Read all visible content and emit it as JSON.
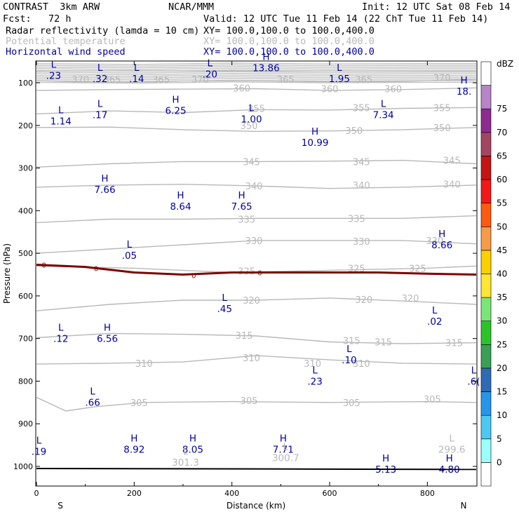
{
  "header": {
    "model": "CONTRAST  3km ARW",
    "center": "NCAR/MMM",
    "init": "Init: 12 UTC Sat 08 Feb 14",
    "fcst": "Fcst:   72 h",
    "valid": "Valid: 12 UTC Tue 11 Feb 14 (22 ChT Tue 11 Feb 14)",
    "fields": [
      {
        "name": "Radar reflectivity (lamda = 10 cm)",
        "xy": "XY= 100.0,100.0 to 100.0,400.0",
        "color": "#000000"
      },
      {
        "name": "Potential temperature",
        "xy": "XY= 100.0,100.0 to 100.0,400.0",
        "color": "#b8b8b8"
      },
      {
        "name": "Horizontal wind speed",
        "xy": "XY= 100.0,100.0 to 100.0,400.0",
        "color": "#0000a0"
      }
    ]
  },
  "chart_data": {
    "type": "contour_cross_section",
    "xlabel": "Distance (km)",
    "ylabel": "Pressure (hPa)",
    "xlim": [
      0,
      900
    ],
    "ylim": [
      1050,
      50
    ],
    "x_ticks": [
      0,
      200,
      400,
      600,
      800
    ],
    "y_ticks": [
      100,
      200,
      300,
      400,
      500,
      600,
      700,
      800,
      900,
      1000
    ],
    "end_labels": {
      "left": "S",
      "right": "N"
    },
    "colorbar": {
      "unit": "dBZ",
      "levels": [
        0,
        5,
        10,
        15,
        20,
        25,
        30,
        35,
        40,
        45,
        50,
        55,
        60,
        65,
        70,
        75
      ],
      "colors": [
        "#ffffff",
        "#9cffff",
        "#4cc8f4",
        "#2896e8",
        "#2e6bb4",
        "#3aa055",
        "#2ac42a",
        "#7ae67a",
        "#ffe633",
        "#ffd000",
        "#f59b4a",
        "#ff5a10",
        "#f51818",
        "#c41414",
        "#a34560",
        "#8e2a92",
        "#b884c8",
        "#ffffff"
      ]
    },
    "theta_contours": [
      {
        "level": 370,
        "points": [
          [
            0,
            72
          ],
          [
            900,
            72
          ]
        ]
      },
      {
        "level": 365,
        "points": [
          [
            0,
            95
          ],
          [
            150,
            100
          ],
          [
            300,
            96
          ],
          [
            450,
            95
          ],
          [
            600,
            98
          ],
          [
            750,
            97
          ],
          [
            900,
            92
          ]
        ]
      },
      {
        "level": 360,
        "points": [
          [
            0,
            118
          ],
          [
            150,
            116
          ],
          [
            300,
            115
          ],
          [
            450,
            114
          ],
          [
            600,
            118
          ],
          [
            750,
            116
          ],
          [
            900,
            112
          ]
        ]
      },
      {
        "level": 355,
        "points": [
          [
            0,
            173
          ],
          [
            150,
            166
          ],
          [
            300,
            170
          ],
          [
            450,
            163
          ],
          [
            600,
            164
          ],
          [
            750,
            160
          ],
          [
            900,
            158
          ]
        ]
      },
      {
        "level": 350,
        "points": [
          [
            0,
            205
          ],
          [
            150,
            204
          ],
          [
            300,
            210
          ],
          [
            450,
            214
          ],
          [
            600,
            213
          ],
          [
            750,
            210
          ],
          [
            900,
            205
          ]
        ]
      },
      {
        "level": 345,
        "points": [
          [
            0,
            298
          ],
          [
            150,
            290
          ],
          [
            300,
            285
          ],
          [
            450,
            285
          ],
          [
            600,
            284
          ],
          [
            750,
            282
          ],
          [
            900,
            290
          ]
        ]
      },
      {
        "level": 340,
        "points": [
          [
            0,
            345
          ],
          [
            150,
            340
          ],
          [
            300,
            338
          ],
          [
            450,
            342
          ],
          [
            600,
            348
          ],
          [
            750,
            345
          ],
          [
            900,
            340
          ]
        ]
      },
      {
        "level": 335,
        "points": [
          [
            0,
            428
          ],
          [
            150,
            420
          ],
          [
            300,
            420
          ],
          [
            450,
            418
          ],
          [
            600,
            418
          ],
          [
            750,
            418
          ],
          [
            900,
            412
          ]
        ]
      },
      {
        "level": 330,
        "points": [
          [
            0,
            500
          ],
          [
            150,
            490
          ],
          [
            300,
            480
          ],
          [
            450,
            470
          ],
          [
            600,
            470
          ],
          [
            750,
            470
          ],
          [
            900,
            478
          ]
        ]
      },
      {
        "level": 325,
        "points": [
          [
            0,
            530
          ],
          [
            200,
            535
          ],
          [
            400,
            545
          ],
          [
            600,
            540
          ],
          [
            800,
            535
          ],
          [
            900,
            530
          ]
        ]
      },
      {
        "level": 320,
        "points": [
          [
            0,
            635
          ],
          [
            150,
            620
          ],
          [
            300,
            610
          ],
          [
            450,
            610
          ],
          [
            600,
            605
          ],
          [
            750,
            612
          ],
          [
            900,
            620
          ]
        ]
      },
      {
        "level": 315,
        "points": [
          [
            0,
            698
          ],
          [
            150,
            688
          ],
          [
            300,
            690
          ],
          [
            450,
            694
          ],
          [
            600,
            708
          ],
          [
            750,
            712
          ],
          [
            900,
            710
          ]
        ]
      },
      {
        "level": 310,
        "points": [
          [
            0,
            760
          ],
          [
            150,
            758
          ],
          [
            300,
            755
          ],
          [
            450,
            740
          ],
          [
            600,
            750
          ],
          [
            750,
            758
          ],
          [
            900,
            760
          ]
        ]
      },
      {
        "level": 305,
        "points": [
          [
            0,
            838
          ],
          [
            60,
            870
          ],
          [
            120,
            860
          ],
          [
            220,
            850
          ],
          [
            400,
            848
          ],
          [
            600,
            850
          ],
          [
            800,
            848
          ],
          [
            900,
            850
          ]
        ]
      }
    ],
    "freezing_level": {
      "level": 0,
      "points": [
        [
          0,
          527
        ],
        [
          100,
          532
        ],
        [
          200,
          545
        ],
        [
          300,
          550
        ],
        [
          400,
          545
        ],
        [
          500,
          545
        ],
        [
          600,
          545
        ],
        [
          700,
          545
        ],
        [
          800,
          548
        ],
        [
          900,
          550
        ]
      ]
    },
    "surface_line": [
      [
        0,
        1005
      ],
      [
        900,
        1007
      ]
    ],
    "theta_labels": [
      {
        "text": "370",
        "x": 90,
        "y": 92
      },
      {
        "text": "365",
        "x": 155,
        "y": 92
      },
      {
        "text": "365",
        "x": 255,
        "y": 92
      },
      {
        "text": "370",
        "x": 335,
        "y": 92
      },
      {
        "text": "365",
        "x": 510,
        "y": 92
      },
      {
        "text": "365",
        "x": 670,
        "y": 92
      },
      {
        "text": "370",
        "x": 830,
        "y": 88
      },
      {
        "text": "360",
        "x": 420,
        "y": 112
      },
      {
        "text": "360",
        "x": 600,
        "y": 114
      },
      {
        "text": "360",
        "x": 730,
        "y": 114
      },
      {
        "text": "355",
        "x": 450,
        "y": 160
      },
      {
        "text": "355",
        "x": 665,
        "y": 158
      },
      {
        "text": "355",
        "x": 830,
        "y": 158
      },
      {
        "text": "350",
        "x": 435,
        "y": 200
      },
      {
        "text": "350",
        "x": 650,
        "y": 212
      },
      {
        "text": "350",
        "x": 830,
        "y": 205
      },
      {
        "text": "345",
        "x": 440,
        "y": 285
      },
      {
        "text": "345",
        "x": 665,
        "y": 285
      },
      {
        "text": "345",
        "x": 850,
        "y": 282
      },
      {
        "text": "340",
        "x": 445,
        "y": 342
      },
      {
        "text": "340",
        "x": 665,
        "y": 340
      },
      {
        "text": "340",
        "x": 850,
        "y": 338
      },
      {
        "text": "335",
        "x": 430,
        "y": 420
      },
      {
        "text": "335",
        "x": 655,
        "y": 418
      },
      {
        "text": "330",
        "x": 445,
        "y": 470
      },
      {
        "text": "330",
        "x": 665,
        "y": 472
      },
      {
        "text": "330",
        "x": 815,
        "y": 470
      },
      {
        "text": "325",
        "x": 430,
        "y": 542
      },
      {
        "text": "325",
        "x": 655,
        "y": 535
      },
      {
        "text": "325",
        "x": 780,
        "y": 535
      },
      {
        "text": "320",
        "x": 440,
        "y": 610
      },
      {
        "text": "320",
        "x": 670,
        "y": 608
      },
      {
        "text": "320",
        "x": 765,
        "y": 605
      },
      {
        "text": "315",
        "x": 425,
        "y": 692
      },
      {
        "text": "315",
        "x": 645,
        "y": 705
      },
      {
        "text": "315",
        "x": 710,
        "y": 708
      },
      {
        "text": "315",
        "x": 855,
        "y": 710
      },
      {
        "text": "310",
        "x": 220,
        "y": 758
      },
      {
        "text": "310",
        "x": 440,
        "y": 745
      },
      {
        "text": "310",
        "x": 565,
        "y": 758
      },
      {
        "text": "310",
        "x": 665,
        "y": 758
      },
      {
        "text": "305",
        "x": 210,
        "y": 850
      },
      {
        "text": "305",
        "x": 435,
        "y": 845
      },
      {
        "text": "305",
        "x": 645,
        "y": 850
      },
      {
        "text": "305",
        "x": 810,
        "y": 842
      }
    ],
    "freezing_labels": [
      {
        "text": "0",
        "x": 15,
        "y": 527
      },
      {
        "text": "0",
        "x": 122,
        "y": 535
      },
      {
        "text": "0",
        "x": 322,
        "y": 552
      },
      {
        "text": "0",
        "x": 457,
        "y": 545
      }
    ],
    "wind_extrema": [
      {
        "mark": "L",
        "value": ".23",
        "x": 35,
        "y": 68,
        "color": "#0000a0"
      },
      {
        "mark": "L",
        "value": ".32",
        "x": 130,
        "y": 75,
        "color": "#0000a0"
      },
      {
        "mark": "L",
        "value": ".14",
        "x": 205,
        "y": 75,
        "color": "#0000a0"
      },
      {
        "mark": "L",
        "value": ".20",
        "x": 355,
        "y": 65,
        "color": "#0000a0"
      },
      {
        "mark": "H",
        "value": "13.86",
        "x": 470,
        "y": 50,
        "color": "#0000a0"
      },
      {
        "mark": "L",
        "value": "1.95",
        "x": 620,
        "y": 75,
        "color": "#0000a0"
      },
      {
        "mark": "H",
        "value": "18.",
        "x": 875,
        "y": 105,
        "color": "#0000a0"
      },
      {
        "mark": "L",
        "value": "1.14",
        "x": 50,
        "y": 175,
        "color": "#0000a0"
      },
      {
        "mark": "L",
        "value": ".17",
        "x": 130,
        "y": 160,
        "color": "#0000a0"
      },
      {
        "mark": "H",
        "value": "6.25",
        "x": 285,
        "y": 150,
        "color": "#0000a0"
      },
      {
        "mark": "L",
        "value": "1.00",
        "x": 440,
        "y": 170,
        "color": "#0000a0"
      },
      {
        "mark": "H",
        "value": "10.99",
        "x": 570,
        "y": 225,
        "color": "#0000a0"
      },
      {
        "mark": "L",
        "value": "7.34",
        "x": 710,
        "y": 160,
        "color": "#0000a0"
      },
      {
        "mark": "H",
        "value": "7.66",
        "x": 140,
        "y": 335,
        "color": "#0000a0"
      },
      {
        "mark": "H",
        "value": "8.64",
        "x": 295,
        "y": 375,
        "color": "#0000a0"
      },
      {
        "mark": "H",
        "value": "7.65",
        "x": 420,
        "y": 375,
        "color": "#0000a0"
      },
      {
        "mark": "L",
        "value": ".05",
        "x": 190,
        "y": 490,
        "color": "#0000a0"
      },
      {
        "mark": "H",
        "value": "8.66",
        "x": 830,
        "y": 465,
        "color": "#0000a0"
      },
      {
        "mark": "L",
        "value": ".45",
        "x": 385,
        "y": 615,
        "color": "#0000a0"
      },
      {
        "mark": "L",
        "value": ".02",
        "x": 815,
        "y": 645,
        "color": "#0000a0"
      },
      {
        "mark": "L",
        "value": ".12",
        "x": 50,
        "y": 685,
        "color": "#0000a0"
      },
      {
        "mark": "H",
        "value": "6.56",
        "x": 145,
        "y": 685,
        "color": "#0000a0"
      },
      {
        "mark": "L",
        "value": ".10",
        "x": 640,
        "y": 735,
        "color": "#0000a0"
      },
      {
        "mark": "L",
        "value": ".23",
        "x": 570,
        "y": 785,
        "color": "#0000a0"
      },
      {
        "mark": "L",
        "value": ".66",
        "x": 115,
        "y": 835,
        "color": "#0000a0"
      },
      {
        "mark": "L",
        "value": ".6(",
        "x": 895,
        "y": 785,
        "color": "#0000a0"
      },
      {
        "mark": "L",
        "value": ".19",
        "x": 5,
        "y": 950,
        "color": "#0000a0"
      },
      {
        "mark": "H",
        "value": "8.92",
        "x": 200,
        "y": 945,
        "color": "#0000a0"
      },
      {
        "mark": "H",
        "value": "8.05",
        "x": 320,
        "y": 945,
        "color": "#0000a0"
      },
      {
        "mark": "H",
        "value": "7.71",
        "x": 505,
        "y": 945,
        "color": "#0000a0"
      },
      {
        "mark": "H",
        "value": "5.13",
        "x": 715,
        "y": 992,
        "color": "#0000a0"
      },
      {
        "mark": "H",
        "value": "4.80",
        "x": 845,
        "y": 992,
        "color": "#0000a0"
      }
    ],
    "theta_extrema": [
      {
        "mark": "L",
        "value": "301.3",
        "x": 305,
        "y": 975,
        "color": "#b8b8b8"
      },
      {
        "mark": "L",
        "value": "300.7",
        "x": 510,
        "y": 965,
        "color": "#b8b8b8"
      },
      {
        "mark": "L",
        "value": "299.6",
        "x": 850,
        "y": 945,
        "color": "#b8b8b8"
      }
    ]
  }
}
